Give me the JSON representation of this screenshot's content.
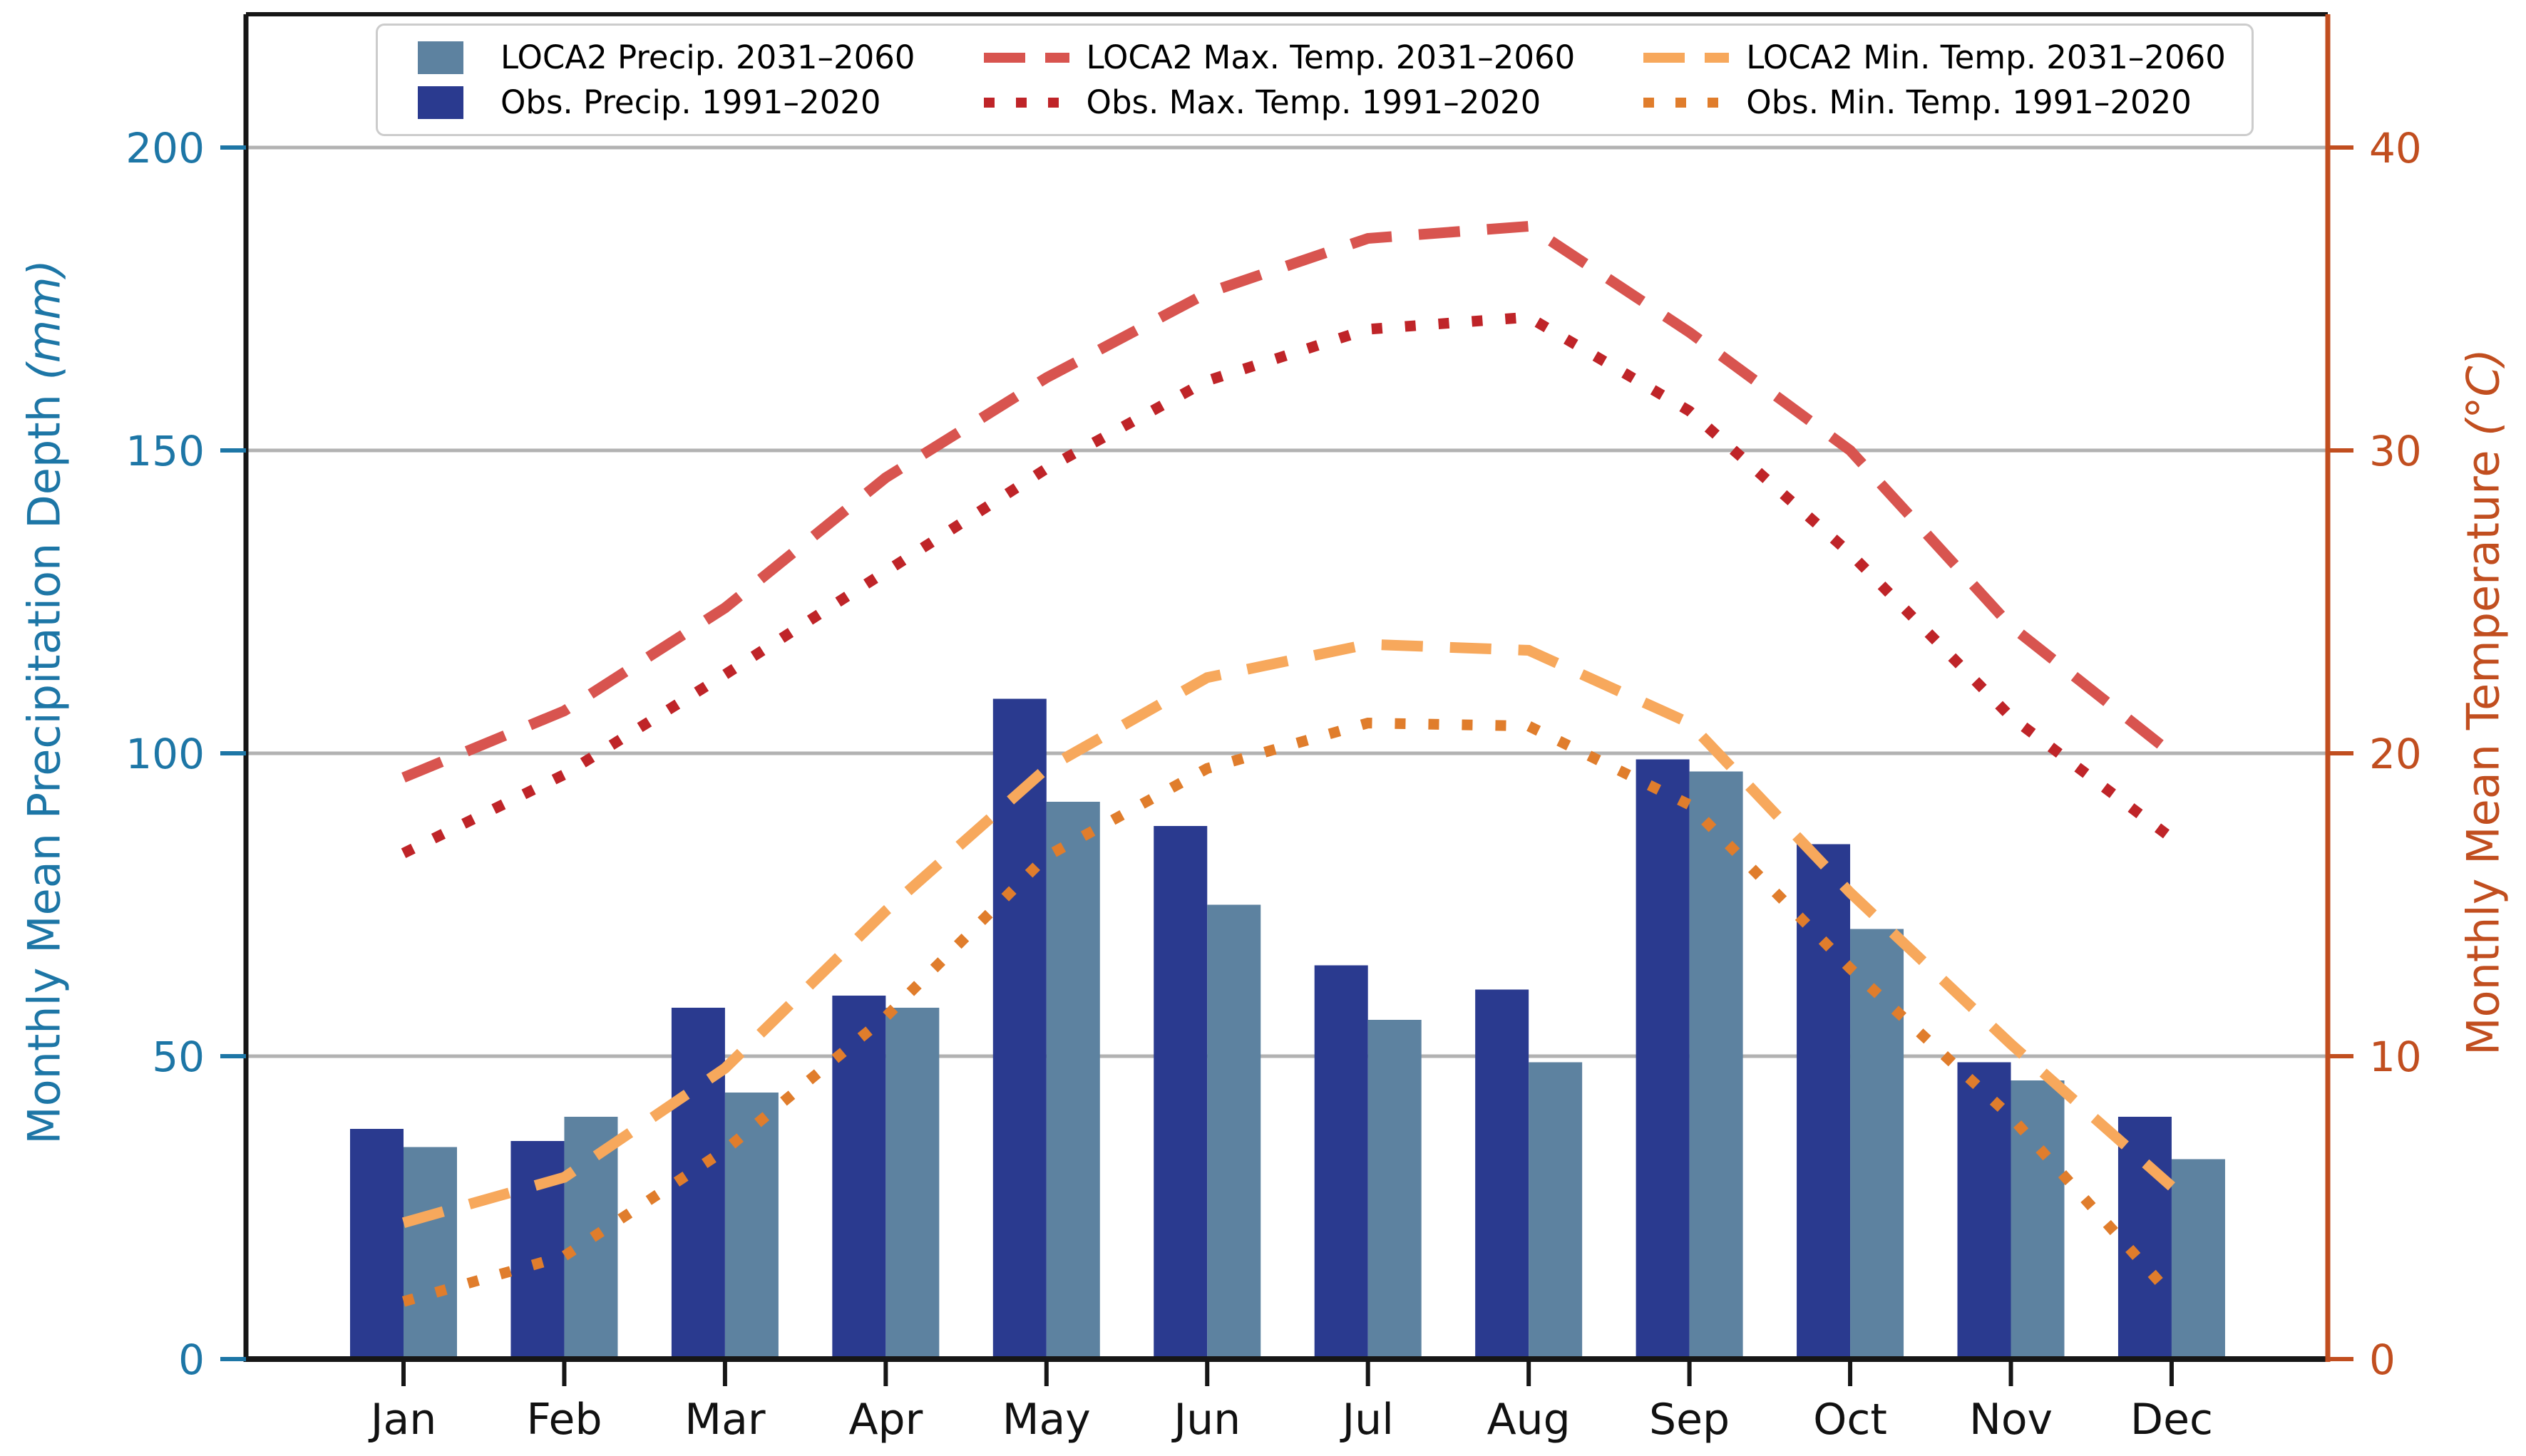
{
  "figure": {
    "background": "#ffffff",
    "colors": {
      "obs_precip": "#2a3a8f",
      "loca2_precip": "#5d82a0",
      "loca2_tmax": "#d8544f",
      "obs_tmax": "#bf2428",
      "loca2_tmin": "#f7a85c",
      "obs_tmin": "#e07d2c",
      "left_axis": "#1d76a6",
      "right_axis": "#c14e1f",
      "gridline": "#b2b2b2",
      "spine": "#161616"
    }
  },
  "legend": {
    "items": [
      {
        "label": "LOCA2 Precip. 2031–2060",
        "marker": "patch",
        "color": "#5d82a0"
      },
      {
        "label": "LOCA2 Max. Temp. 2031–2060",
        "marker": "dash",
        "color": "#d8544f"
      },
      {
        "label": "LOCA2 Min. Temp. 2031–2060",
        "marker": "dash",
        "color": "#f7a85c"
      },
      {
        "label": "Obs. Precip. 1991–2020",
        "marker": "patch",
        "color": "#2a3a8f"
      },
      {
        "label": "Obs. Max. Temp. 1991–2020",
        "marker": "dots",
        "color": "#bf2428"
      },
      {
        "label": "Obs. Min. Temp. 1991–2020",
        "marker": "dots",
        "color": "#e07d2c"
      }
    ]
  },
  "axes": {
    "left_title": "Monthly Mean Precipitation Depth ",
    "left_unit": "(mm)",
    "right_title": "Monthly Mean Temperature ",
    "right_unit": "(°C)",
    "left_ticks": [
      0,
      50,
      100,
      150,
      200
    ],
    "right_ticks": [
      0,
      10,
      20,
      30,
      40
    ]
  },
  "chart_data": {
    "type": "combo_bar_line",
    "title": "",
    "categories": [
      "Jan",
      "Feb",
      "Mar",
      "Apr",
      "May",
      "Jun",
      "Jul",
      "Aug",
      "Sep",
      "Oct",
      "Nov",
      "Dec"
    ],
    "xlabel": "",
    "ylabel_left": "Monthly Mean Precipitation Depth (mm)",
    "ylabel_right": "Monthly Mean Temperature (°C)",
    "ylim_left": [
      0,
      222
    ],
    "ylim_right": [
      0,
      44.4
    ],
    "grid": true,
    "legend_position": "upper center inside",
    "bar_series": [
      {
        "name": "Obs. Precip. 1991–2020",
        "axis": "left",
        "unit": "mm",
        "color": "#2a3a8f",
        "values": [
          38,
          36,
          58,
          60,
          109,
          88,
          65,
          61,
          99,
          85,
          49,
          40
        ]
      },
      {
        "name": "LOCA2 Precip. 2031–2060",
        "axis": "left",
        "unit": "mm",
        "color": "#5d82a0",
        "values": [
          35,
          40,
          44,
          58,
          92,
          75,
          56,
          49,
          97,
          71,
          46,
          33
        ]
      }
    ],
    "line_series": [
      {
        "name": "LOCA2 Max. Temp. 2031–2060",
        "axis": "right",
        "unit": "degC",
        "style": "dashed",
        "color": "#d8544f",
        "values": [
          19.2,
          21.4,
          24.8,
          29.1,
          32.4,
          35.2,
          37.0,
          37.4,
          33.9,
          30.0,
          24.2,
          20.0
        ]
      },
      {
        "name": "Obs. Max. Temp. 1991–2020",
        "axis": "right",
        "unit": "degC",
        "style": "dotted",
        "color": "#bf2428",
        "values": [
          16.7,
          19.3,
          22.6,
          26.0,
          29.4,
          32.3,
          34.0,
          34.4,
          31.3,
          26.6,
          21.2,
          17.2
        ]
      },
      {
        "name": "LOCA2 Min. Temp. 2031–2060",
        "axis": "right",
        "unit": "degC",
        "style": "dashed",
        "color": "#f7a85c",
        "values": [
          4.5,
          6.0,
          9.6,
          14.8,
          19.5,
          22.5,
          23.6,
          23.4,
          21.0,
          15.4,
          10.4,
          5.7
        ]
      },
      {
        "name": "Obs. Min. Temp. 1991–2020",
        "axis": "right",
        "unit": "degC",
        "style": "dotted",
        "color": "#e07d2c",
        "values": [
          1.9,
          3.4,
          6.9,
          11.3,
          16.6,
          19.5,
          21.0,
          20.9,
          18.3,
          12.9,
          8.0,
          2.1
        ]
      }
    ]
  }
}
